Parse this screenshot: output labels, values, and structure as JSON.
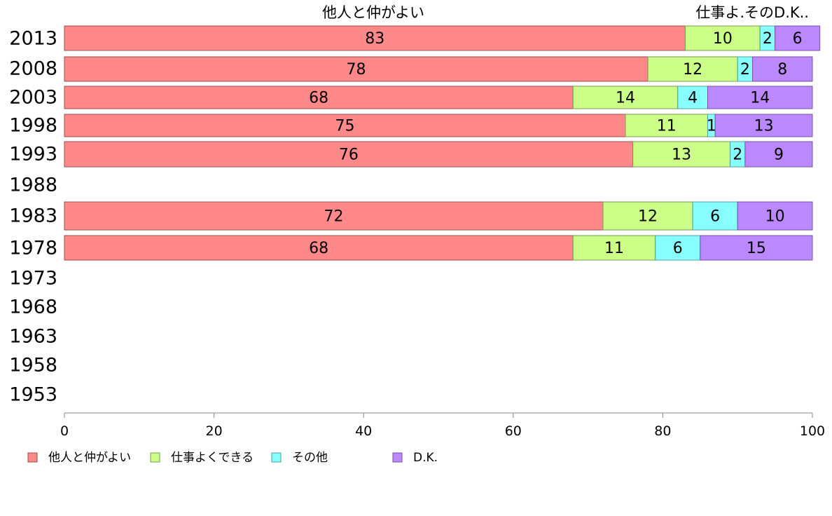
{
  "chart_data": {
    "type": "bar",
    "orientation": "horizontal",
    "stacked": true,
    "categories": [
      "2013",
      "2008",
      "2003",
      "1998",
      "1993",
      "1988",
      "1983",
      "1978",
      "1973",
      "1968",
      "1963",
      "1958",
      "1953"
    ],
    "series": [
      {
        "name": "他人と仲がよい",
        "color": "#ff8888",
        "values": [
          83,
          78,
          68,
          75,
          76,
          null,
          72,
          68,
          null,
          null,
          null,
          null,
          null
        ]
      },
      {
        "name": "仕事よくできる",
        "color": "#ccff88",
        "values": [
          10,
          12,
          14,
          11,
          13,
          null,
          12,
          11,
          null,
          null,
          null,
          null,
          null
        ]
      },
      {
        "name": "その他",
        "color": "#88ffff",
        "values": [
          2,
          2,
          4,
          1,
          2,
          null,
          6,
          6,
          null,
          null,
          null,
          null,
          null
        ]
      },
      {
        "name": "D.K.",
        "color": "#bb88ff",
        "values": [
          6,
          8,
          14,
          13,
          9,
          null,
          10,
          15,
          null,
          null,
          null,
          null,
          null
        ]
      }
    ],
    "xlim": [
      0,
      100
    ],
    "xticks": [
      "0",
      "20",
      "40",
      "60",
      "80",
      "100"
    ],
    "header_labels": {
      "left": "他人と仲がよい",
      "right": "仕事よ.そのD.K.."
    },
    "legend_position": "bottom-left",
    "grid": false
  }
}
